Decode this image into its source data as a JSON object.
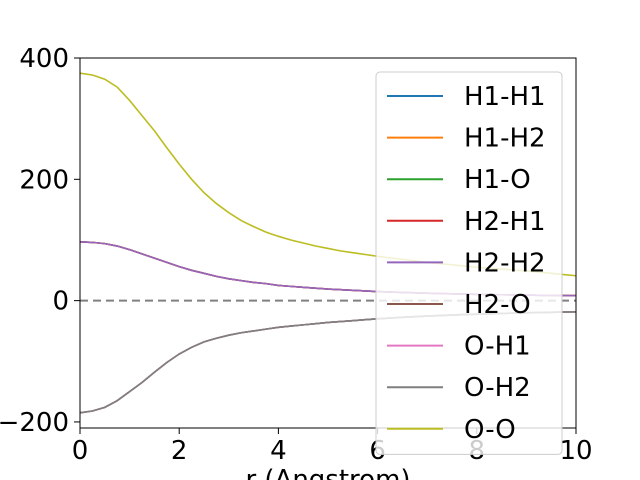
{
  "chart_data": {
    "type": "line",
    "xlabel": "r (Angstrom)",
    "ylabel": "",
    "title": "",
    "xlim": [
      0,
      10
    ],
    "ylim": [
      -210,
      400
    ],
    "xticks": [
      0,
      2,
      4,
      6,
      8,
      10
    ],
    "yticks": [
      -200,
      0,
      200,
      400
    ],
    "xtick_labels": [
      "0",
      "2",
      "4",
      "6",
      "8",
      "10"
    ],
    "ytick_labels": [
      "−200",
      "0",
      "200",
      "400"
    ],
    "grid": false,
    "legend_position": "upper-right",
    "reference_line": {
      "y": 0,
      "style": "dashed",
      "color": "#808080"
    },
    "x": [
      0,
      0.25,
      0.5,
      0.75,
      1,
      1.25,
      1.5,
      1.75,
      2,
      2.25,
      2.5,
      2.75,
      3,
      3.25,
      3.5,
      3.75,
      4,
      4.25,
      4.5,
      4.75,
      5,
      5.25,
      5.5,
      5.75,
      6,
      6.25,
      6.5,
      6.75,
      7,
      7.25,
      7.5,
      7.75,
      8,
      8.25,
      8.5,
      8.75,
      9,
      9.25,
      9.5,
      9.75,
      10
    ],
    "series": [
      {
        "name": "H1-H1",
        "color": "#1f77b4",
        "values": [
          97,
          96,
          94,
          90,
          84,
          77,
          70,
          63,
          56,
          50,
          45,
          40,
          36,
          33,
          30,
          28,
          25,
          23.5,
          22,
          20.5,
          19,
          18,
          17,
          16,
          15,
          14.2,
          13.5,
          12.8,
          12.2,
          11.7,
          11.2,
          10.8,
          10.4,
          10,
          9.7,
          9.4,
          9.1,
          8.8,
          8.6,
          8.4,
          8.2
        ]
      },
      {
        "name": "H1-H2",
        "color": "#ff7f0e",
        "values": [
          97,
          96,
          94,
          90,
          84,
          77,
          70,
          63,
          56,
          50,
          45,
          40,
          36,
          33,
          30,
          28,
          25,
          23.5,
          22,
          20.5,
          19,
          18,
          17,
          16,
          15,
          14.2,
          13.5,
          12.8,
          12.2,
          11.7,
          11.2,
          10.8,
          10.4,
          10,
          9.7,
          9.4,
          9.1,
          8.8,
          8.6,
          8.4,
          8.2
        ]
      },
      {
        "name": "H1-O",
        "color": "#2ca02c",
        "values": [
          -185,
          -182,
          -176,
          -165,
          -150,
          -135,
          -118,
          -102,
          -88,
          -77,
          -68,
          -62,
          -57,
          -53,
          -50,
          -47,
          -44,
          -42,
          -40,
          -38,
          -36,
          -34.5,
          -33,
          -31.5,
          -30,
          -28.8,
          -27.6,
          -26.5,
          -25.5,
          -24.6,
          -23.8,
          -23,
          -22.3,
          -21.7,
          -21.1,
          -20.6,
          -20.1,
          -19.7,
          -19.3,
          -18.9,
          -18.5
        ]
      },
      {
        "name": "H2-H1",
        "color": "#d62728",
        "values": [
          97,
          96,
          94,
          90,
          84,
          77,
          70,
          63,
          56,
          50,
          45,
          40,
          36,
          33,
          30,
          28,
          25,
          23.5,
          22,
          20.5,
          19,
          18,
          17,
          16,
          15,
          14.2,
          13.5,
          12.8,
          12.2,
          11.7,
          11.2,
          10.8,
          10.4,
          10,
          9.7,
          9.4,
          9.1,
          8.8,
          8.6,
          8.4,
          8.2
        ]
      },
      {
        "name": "H2-H2",
        "color": "#9467bd",
        "values": [
          97,
          96,
          94,
          90,
          84,
          77,
          70,
          63,
          56,
          50,
          45,
          40,
          36,
          33,
          30,
          28,
          25,
          23.5,
          22,
          20.5,
          19,
          18,
          17,
          16,
          15,
          14.2,
          13.5,
          12.8,
          12.2,
          11.7,
          11.2,
          10.8,
          10.4,
          10,
          9.7,
          9.4,
          9.1,
          8.8,
          8.6,
          8.4,
          8.2
        ]
      },
      {
        "name": "H2-O",
        "color": "#8c564b",
        "values": [
          -185,
          -182,
          -176,
          -165,
          -150,
          -135,
          -118,
          -102,
          -88,
          -77,
          -68,
          -62,
          -57,
          -53,
          -50,
          -47,
          -44,
          -42,
          -40,
          -38,
          -36,
          -34.5,
          -33,
          -31.5,
          -30,
          -28.8,
          -27.6,
          -26.5,
          -25.5,
          -24.6,
          -23.8,
          -23,
          -22.3,
          -21.7,
          -21.1,
          -20.6,
          -20.1,
          -19.7,
          -19.3,
          -18.9,
          -18.5
        ]
      },
      {
        "name": "O-H1",
        "color": "#e377c2",
        "values": [
          -185,
          -182,
          -176,
          -165,
          -150,
          -135,
          -118,
          -102,
          -88,
          -77,
          -68,
          -62,
          -57,
          -53,
          -50,
          -47,
          -44,
          -42,
          -40,
          -38,
          -36,
          -34.5,
          -33,
          -31.5,
          -30,
          -28.8,
          -27.6,
          -26.5,
          -25.5,
          -24.6,
          -23.8,
          -23,
          -22.3,
          -21.7,
          -21.1,
          -20.6,
          -20.1,
          -19.7,
          -19.3,
          -18.9,
          -18.5
        ]
      },
      {
        "name": "O-H2",
        "color": "#7f7f7f",
        "values": [
          -185,
          -182,
          -176,
          -165,
          -150,
          -135,
          -118,
          -102,
          -88,
          -77,
          -68,
          -62,
          -57,
          -53,
          -50,
          -47,
          -44,
          -42,
          -40,
          -38,
          -36,
          -34.5,
          -33,
          -31.5,
          -30,
          -28.8,
          -27.6,
          -26.5,
          -25.5,
          -24.6,
          -23.8,
          -23,
          -22.3,
          -21.7,
          -21.1,
          -20.6,
          -20.1,
          -19.7,
          -19.3,
          -18.9,
          -18.5
        ]
      },
      {
        "name": "O-O",
        "color": "#bcbd22",
        "values": [
          375,
          372,
          365,
          352,
          330,
          305,
          280,
          252,
          225,
          200,
          178,
          160,
          145,
          132,
          122,
          113,
          106,
          100,
          95,
          90,
          86,
          82,
          79,
          76,
          73,
          70.5,
          68,
          65.5,
          63,
          61,
          59,
          57,
          55,
          53.5,
          52,
          50.5,
          49,
          47,
          45,
          43,
          41
        ]
      }
    ]
  }
}
